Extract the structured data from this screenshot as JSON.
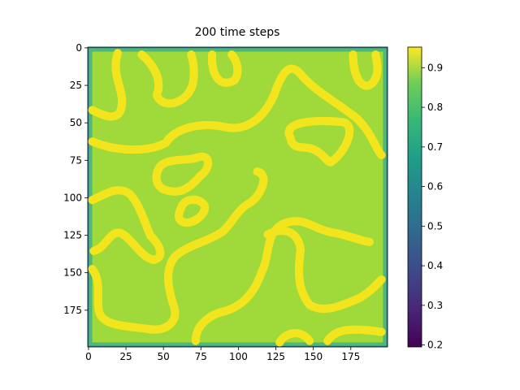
{
  "chart_data": {
    "type": "image",
    "title": "200 time steps",
    "xlim": [
      -0.5,
      199.5
    ],
    "ylim": [
      199.5,
      -0.5
    ],
    "xticks": [
      0,
      25,
      50,
      75,
      100,
      125,
      150,
      175
    ],
    "yticks": [
      0,
      25,
      50,
      75,
      100,
      125,
      150,
      175
    ],
    "colormap": "viridis",
    "clim": [
      0.195,
      0.952
    ],
    "cticks": [
      0.2,
      0.3,
      0.4,
      0.5,
      0.6,
      0.7,
      0.8,
      0.9
    ]
  }
}
